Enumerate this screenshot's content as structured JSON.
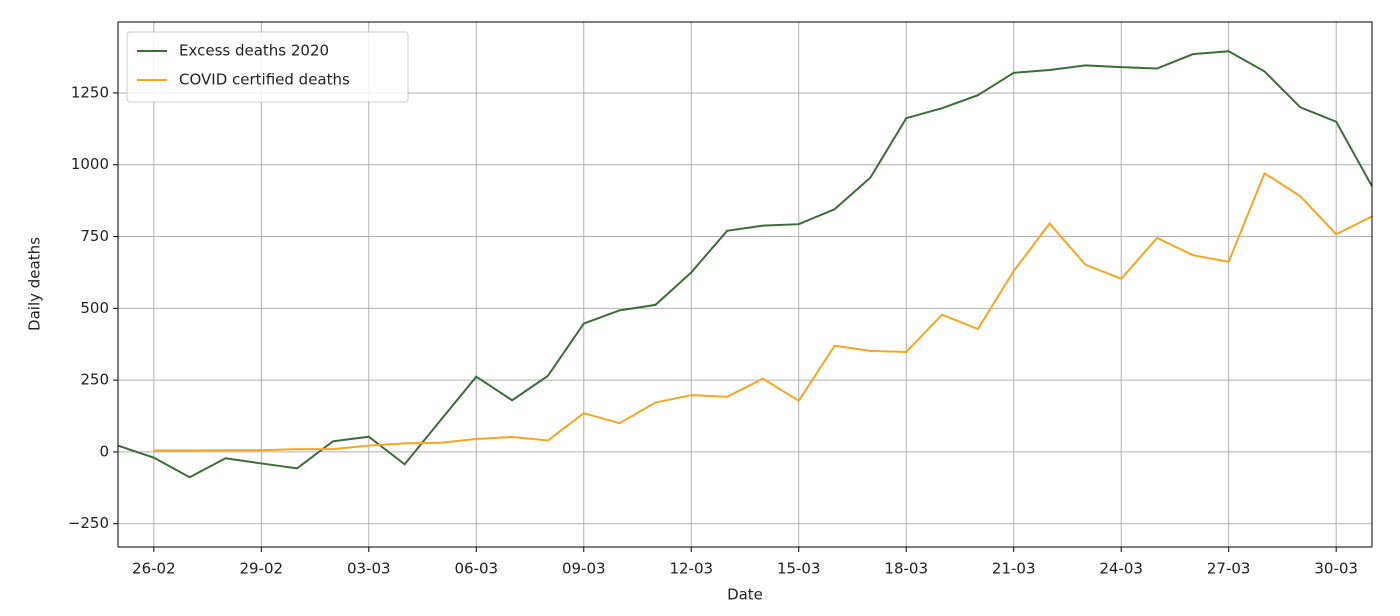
{
  "chart_data": {
    "type": "line",
    "xlabel": "Date",
    "ylabel": "Daily deaths",
    "x": [
      "25-02",
      "26-02",
      "27-02",
      "28-02",
      "29-02",
      "01-03",
      "02-03",
      "03-03",
      "04-03",
      "05-03",
      "06-03",
      "07-03",
      "08-03",
      "09-03",
      "10-03",
      "11-03",
      "12-03",
      "13-03",
      "14-03",
      "15-03",
      "16-03",
      "17-03",
      "18-03",
      "19-03",
      "20-03",
      "21-03",
      "22-03",
      "23-03",
      "24-03",
      "25-03",
      "26-03",
      "27-03",
      "28-03",
      "29-03",
      "30-03",
      "31-03"
    ],
    "series": [
      {
        "name": "Excess deaths 2020",
        "color": "#3d6b3a",
        "values": [
          22,
          -20,
          -88,
          -22,
          -40,
          -57,
          37,
          53,
          -43,
          110,
          262,
          180,
          265,
          447,
          493,
          512,
          625,
          770,
          788,
          793,
          845,
          955,
          1162,
          1197,
          1242,
          1320,
          1330,
          1346,
          1340,
          1335,
          1385,
          1395,
          1325,
          1200,
          1150,
          925
        ]
      },
      {
        "name": "COVID certified deaths",
        "color": "#f5a623",
        "values": [
          null,
          5,
          5,
          6,
          6,
          10,
          10,
          22,
          30,
          32,
          45,
          52,
          40,
          135,
          100,
          172,
          198,
          192,
          255,
          178,
          370,
          352,
          348,
          478,
          428,
          630,
          795,
          652,
          603,
          745,
          685,
          662,
          970,
          890,
          758,
          820
        ]
      }
    ],
    "xlim": [
      "25-02",
      "31-03"
    ],
    "xticks": [
      "26-02",
      "29-02",
      "03-03",
      "06-03",
      "09-03",
      "12-03",
      "15-03",
      "18-03",
      "21-03",
      "24-03",
      "27-03",
      "30-03"
    ],
    "ylim": [
      -331,
      1497
    ],
    "yticks": [
      {
        "value": -250,
        "label": "−250"
      },
      0,
      250,
      500,
      750,
      1000,
      1250
    ],
    "grid": true,
    "legend": "upper left"
  }
}
